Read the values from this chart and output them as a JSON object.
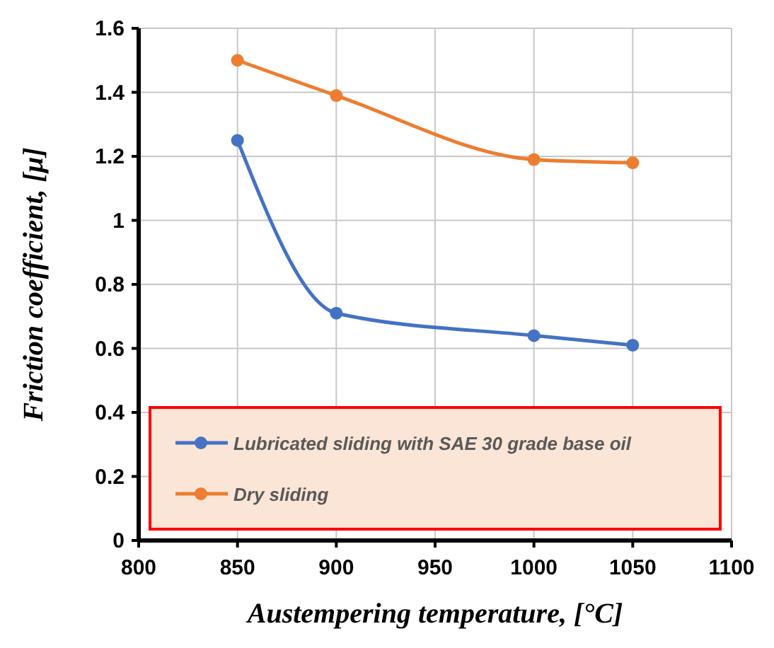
{
  "chart_data": {
    "type": "line",
    "xlabel": "Austempering temperature, [°C]",
    "ylabel": "Friction coefficient, [μ]",
    "x": [
      850,
      900,
      1000,
      1050
    ],
    "series": [
      {
        "name": "Lubricated sliding with SAE 30 grade base oil",
        "color": "#4472c4",
        "values": [
          1.25,
          0.71,
          0.64,
          0.61
        ]
      },
      {
        "name": "Dry sliding",
        "color": "#ed7d31",
        "values": [
          1.5,
          1.39,
          1.19,
          1.18
        ]
      }
    ],
    "xlim": [
      800,
      1100
    ],
    "xticks": [
      800,
      850,
      900,
      950,
      1000,
      1050,
      1100
    ],
    "ylim": [
      0,
      1.6
    ],
    "yticks": [
      0,
      0.2,
      0.4,
      0.6,
      0.8,
      1,
      1.2,
      1.4,
      1.6
    ],
    "grid": true,
    "legend": "bottom",
    "marker": "circle",
    "line_style": "solid"
  }
}
